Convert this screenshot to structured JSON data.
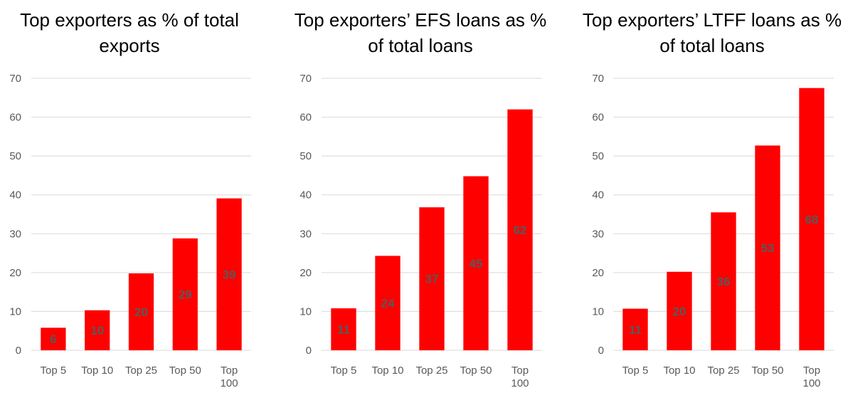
{
  "chart_data": [
    {
      "type": "bar",
      "title": [
        "Top exporters as % of total",
        "exports"
      ],
      "categories": [
        [
          "Top 5"
        ],
        [
          "Top 10"
        ],
        [
          "Top 25"
        ],
        [
          "Top 50"
        ],
        [
          "Top",
          "100"
        ]
      ],
      "values": [
        5.8,
        10.3,
        19.8,
        28.8,
        39.1
      ],
      "data_labels": [
        "6",
        "10",
        "20",
        "29",
        "39"
      ],
      "ylim": [
        0,
        70
      ],
      "yticks": [
        0,
        10,
        20,
        30,
        40,
        50,
        60,
        70
      ],
      "grid": true,
      "bar_color": "#FF0000"
    },
    {
      "type": "bar",
      "title": [
        "Top exporters’ EFS loans as %",
        "of total loans"
      ],
      "categories": [
        [
          "Top 5"
        ],
        [
          "Top 10"
        ],
        [
          "Top 25"
        ],
        [
          "Top 50"
        ],
        [
          "Top",
          "100"
        ]
      ],
      "values": [
        10.8,
        24.3,
        36.8,
        44.8,
        62.0
      ],
      "data_labels": [
        "11",
        "24",
        "37",
        "45",
        "62"
      ],
      "ylim": [
        0,
        70
      ],
      "yticks": [
        0,
        10,
        20,
        30,
        40,
        50,
        60,
        70
      ],
      "grid": true,
      "bar_color": "#FF0000"
    },
    {
      "type": "bar",
      "title": [
        "Top exporters’ LTFF loans as %",
        "of total loans"
      ],
      "categories": [
        [
          "Top 5"
        ],
        [
          "Top 10"
        ],
        [
          "Top 25"
        ],
        [
          "Top 50"
        ],
        [
          "Top",
          "100"
        ]
      ],
      "values": [
        10.7,
        20.2,
        35.5,
        52.7,
        67.5
      ],
      "data_labels": [
        "11",
        "20",
        "36",
        "53",
        "68"
      ],
      "ylim": [
        0,
        70
      ],
      "yticks": [
        0,
        10,
        20,
        30,
        40,
        50,
        60,
        70
      ],
      "grid": true,
      "bar_color": "#FF0000"
    }
  ]
}
